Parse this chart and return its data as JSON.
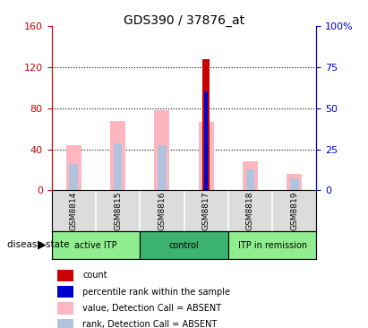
{
  "title": "GDS390 / 37876_at",
  "samples": [
    "GSM8814",
    "GSM8815",
    "GSM8816",
    "GSM8817",
    "GSM8818",
    "GSM8819"
  ],
  "left_ylim": [
    0,
    160
  ],
  "right_ylim": [
    0,
    100
  ],
  "left_yticks": [
    0,
    40,
    80,
    120,
    160
  ],
  "left_yticklabels": [
    "0",
    "40",
    "80",
    "120",
    "160"
  ],
  "right_yticks": [
    0,
    25,
    50,
    75,
    100
  ],
  "right_yticklabels": [
    "0",
    "25",
    "50",
    "75",
    "100%"
  ],
  "left_axis_color": "#CC0000",
  "right_axis_color": "#0000CC",
  "bar_data": {
    "GSM8814": {
      "value_absent": 44,
      "rank_absent": 26,
      "count": 0,
      "percentile": 0
    },
    "GSM8815": {
      "value_absent": 68,
      "rank_absent": 46,
      "count": 0,
      "percentile": 0
    },
    "GSM8816": {
      "value_absent": 78,
      "rank_absent": 44,
      "count": 0,
      "percentile": 0
    },
    "GSM8817": {
      "value_absent": 67,
      "rank_absent": 60,
      "count": 128,
      "percentile": 60
    },
    "GSM8818": {
      "value_absent": 28,
      "rank_absent": 20,
      "count": 0,
      "percentile": 0
    },
    "GSM8819": {
      "value_absent": 16,
      "rank_absent": 12,
      "count": 0,
      "percentile": 0
    }
  },
  "color_value_absent": "#FFB6C1",
  "color_rank_absent": "#B0C4DE",
  "color_count": "#CC0000",
  "color_percentile": "#0000CC",
  "bar_width": 0.35,
  "dotted_gridlines": [
    40,
    80,
    120
  ],
  "background_color": "#DCDCDC",
  "group_starts": [
    0,
    2,
    4
  ],
  "group_ends": [
    2,
    4,
    6
  ],
  "group_colors": [
    "#90EE90",
    "#3CB371",
    "#90EE90"
  ],
  "group_labels": [
    "active ITP",
    "control",
    "ITP in remission"
  ],
  "legend_items": [
    {
      "color": "#CC0000",
      "label": "count"
    },
    {
      "color": "#0000CC",
      "label": "percentile rank within the sample"
    },
    {
      "color": "#FFB6C1",
      "label": "value, Detection Call = ABSENT"
    },
    {
      "color": "#B0C4DE",
      "label": "rank, Detection Call = ABSENT"
    }
  ]
}
